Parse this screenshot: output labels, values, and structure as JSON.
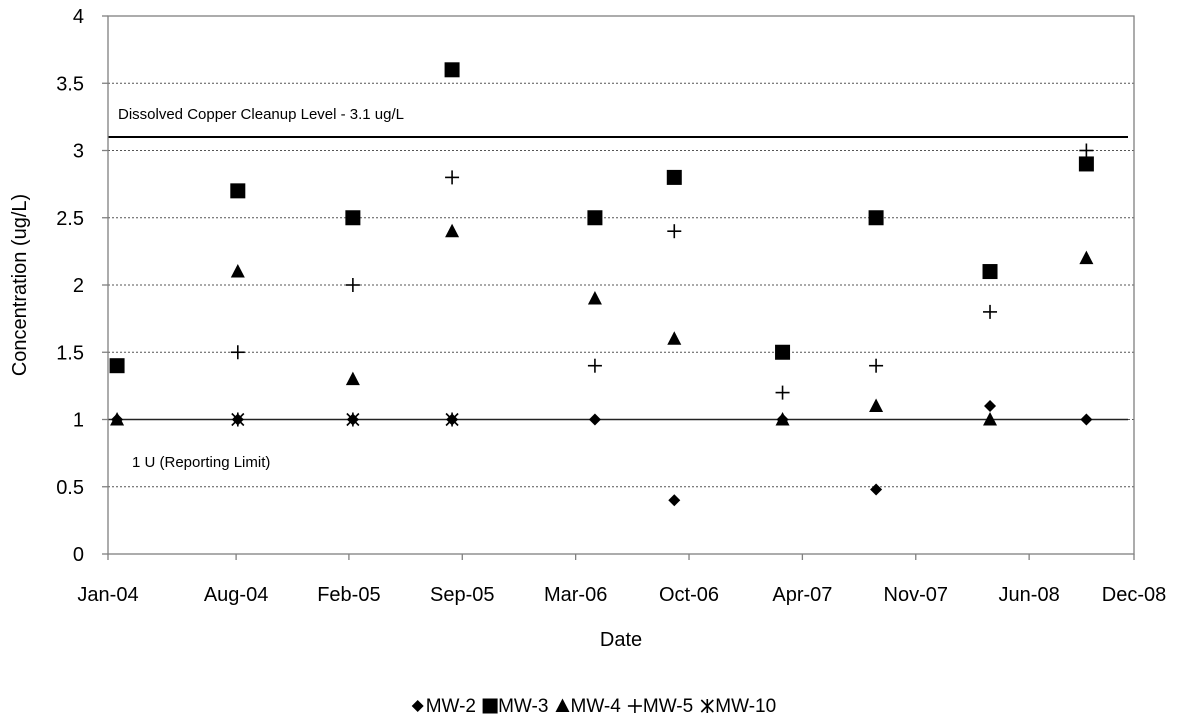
{
  "chart_data": {
    "type": "scatter",
    "title": "",
    "xlabel": "Date",
    "ylabel": "Concentration (ug/L)",
    "x_scale": "date",
    "xlim": [
      "2003-12-18",
      "2008-12-01"
    ],
    "ylim": [
      0,
      4
    ],
    "x_ticks": [
      {
        "date": "2003-12-18",
        "label": "Jan-04"
      },
      {
        "date": "2004-07-31",
        "label": "Aug-04"
      },
      {
        "date": "2005-02-15",
        "label": "Feb-05"
      },
      {
        "date": "2005-09-03",
        "label": "Sep-05"
      },
      {
        "date": "2006-03-22",
        "label": "Mar-06"
      },
      {
        "date": "2006-10-08",
        "label": "Oct-06"
      },
      {
        "date": "2007-04-26",
        "label": "Apr-07"
      },
      {
        "date": "2007-11-12",
        "label": "Nov-07"
      },
      {
        "date": "2008-05-30",
        "label": "Jun-08"
      },
      {
        "date": "2008-12-16",
        "label": "Dec-08"
      }
    ],
    "y_ticks": [
      0,
      0.5,
      1,
      1.5,
      2,
      2.5,
      3,
      3.5,
      4
    ],
    "y_tick_labels": [
      "0",
      "0.5",
      "1",
      "1.5",
      "2",
      "2.5",
      "3",
      "3.5",
      "4"
    ],
    "grid": "horizontal dotted",
    "legend_position": "bottom",
    "reference_lines": [
      {
        "y": 3.1,
        "label": "Dissolved Copper Cleanup Level - 3.1 ug/L"
      },
      {
        "y": 1.0,
        "label": "1 U (Reporting Limit)"
      }
    ],
    "series": [
      {
        "name": "MW-2",
        "marker": "diamond",
        "points": [
          {
            "x": "2004-01-03",
            "y": 1.0
          },
          {
            "x": "2004-08-03",
            "y": 1.0
          },
          {
            "x": "2005-02-22",
            "y": 1.0
          },
          {
            "x": "2005-08-16",
            "y": 1.0
          },
          {
            "x": "2006-04-25",
            "y": 1.0
          },
          {
            "x": "2006-09-12",
            "y": 0.4
          },
          {
            "x": "2007-03-22",
            "y": 1.0
          },
          {
            "x": "2007-09-03",
            "y": 0.48
          },
          {
            "x": "2008-03-22",
            "y": 1.1
          },
          {
            "x": "2008-09-08",
            "y": 1.0
          }
        ]
      },
      {
        "name": "MW-3",
        "marker": "square",
        "points": [
          {
            "x": "2004-01-03",
            "y": 1.4
          },
          {
            "x": "2004-08-03",
            "y": 2.7
          },
          {
            "x": "2005-02-22",
            "y": 2.5
          },
          {
            "x": "2005-08-16",
            "y": 3.6
          },
          {
            "x": "2006-04-25",
            "y": 2.5
          },
          {
            "x": "2006-09-12",
            "y": 2.8
          },
          {
            "x": "2007-03-22",
            "y": 1.5
          },
          {
            "x": "2007-09-03",
            "y": 2.5
          },
          {
            "x": "2008-03-22",
            "y": 2.1
          },
          {
            "x": "2008-09-08",
            "y": 2.9
          }
        ]
      },
      {
        "name": "MW-4",
        "marker": "triangle",
        "points": [
          {
            "x": "2004-01-03",
            "y": 1.0
          },
          {
            "x": "2004-08-03",
            "y": 2.1
          },
          {
            "x": "2005-02-22",
            "y": 1.3
          },
          {
            "x": "2005-08-16",
            "y": 2.4
          },
          {
            "x": "2006-04-25",
            "y": 1.9
          },
          {
            "x": "2006-09-12",
            "y": 1.6
          },
          {
            "x": "2007-03-22",
            "y": 1.0
          },
          {
            "x": "2007-09-03",
            "y": 1.1
          },
          {
            "x": "2008-03-22",
            "y": 1.0
          },
          {
            "x": "2008-09-08",
            "y": 2.2
          }
        ]
      },
      {
        "name": "MW-5",
        "marker": "plus",
        "points": [
          {
            "x": "2004-08-03",
            "y": 1.5
          },
          {
            "x": "2005-02-22",
            "y": 2.0
          },
          {
            "x": "2005-08-16",
            "y": 2.8
          },
          {
            "x": "2006-04-25",
            "y": 1.4
          },
          {
            "x": "2006-09-12",
            "y": 2.4
          },
          {
            "x": "2007-03-22",
            "y": 1.2
          },
          {
            "x": "2007-09-03",
            "y": 1.4
          },
          {
            "x": "2008-03-22",
            "y": 1.8
          },
          {
            "x": "2008-09-08",
            "y": 3.0
          }
        ]
      },
      {
        "name": "MW-10",
        "marker": "star",
        "points": [
          {
            "x": "2004-08-03",
            "y": 1.0
          },
          {
            "x": "2005-02-22",
            "y": 1.0
          },
          {
            "x": "2005-08-16",
            "y": 1.0
          }
        ]
      }
    ]
  }
}
